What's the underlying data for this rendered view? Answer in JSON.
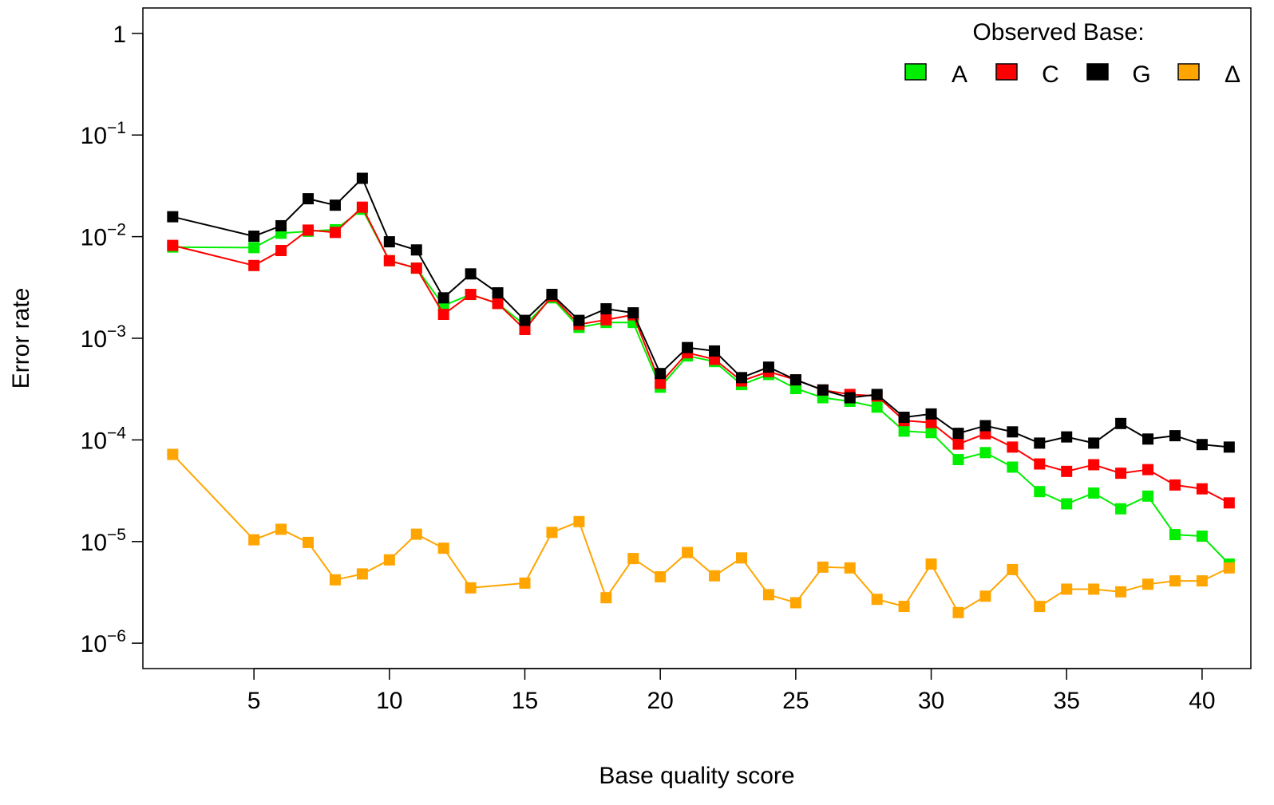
{
  "chart_data": {
    "type": "line",
    "title": "",
    "xlabel": "Base quality score",
    "ylabel": "Error rate",
    "log_y": true,
    "xlim": [
      0.9,
      41.8
    ],
    "ylim_log10": [
      -6.25,
      0.25
    ],
    "x_ticks": [
      5,
      10,
      15,
      20,
      25,
      30,
      35,
      40
    ],
    "x_tick_labels": [
      "5",
      "10",
      "15",
      "20",
      "25",
      "30",
      "35",
      "40"
    ],
    "y_ticks": [
      {
        "exp": 0,
        "base": "1",
        "sup": ""
      },
      {
        "exp": -1,
        "base": "10",
        "sup": "−1"
      },
      {
        "exp": -2,
        "base": "10",
        "sup": "−2"
      },
      {
        "exp": -3,
        "base": "10",
        "sup": "−3"
      },
      {
        "exp": -4,
        "base": "10",
        "sup": "−4"
      },
      {
        "exp": -5,
        "base": "10",
        "sup": "−5"
      },
      {
        "exp": -6,
        "base": "10",
        "sup": "−6"
      }
    ],
    "grid": false,
    "legend_position": "top-right",
    "legend_title": "Observed Base:",
    "series": [
      {
        "name": "A",
        "color": "#00ee00",
        "points": [
          [
            2,
            0.0079
          ],
          [
            5,
            0.0078
          ],
          [
            6,
            0.0108
          ],
          [
            7,
            0.0113
          ],
          [
            8,
            0.0117
          ],
          [
            9,
            0.0186
          ],
          [
            10,
            0.0058
          ],
          [
            11,
            0.0049
          ],
          [
            12,
            0.0021
          ],
          [
            13,
            0.0027
          ],
          [
            14,
            0.0022
          ],
          [
            15,
            0.00135
          ],
          [
            16,
            0.0025
          ],
          [
            17,
            0.00128
          ],
          [
            18,
            0.00143
          ],
          [
            19,
            0.00143
          ],
          [
            20,
            0.00033
          ],
          [
            21,
            0.00067
          ],
          [
            22,
            0.00059
          ],
          [
            23,
            0.00035
          ],
          [
            24,
            0.00044
          ],
          [
            25,
            0.00032
          ],
          [
            26,
            0.00026
          ],
          [
            27,
            0.00024
          ],
          [
            28,
            0.00021
          ],
          [
            29,
            0.000122
          ],
          [
            30,
            0.000118
          ],
          [
            31,
            6.4e-05
          ],
          [
            32,
            7.5e-05
          ],
          [
            33,
            5.4e-05
          ],
          [
            34,
            3.1e-05
          ],
          [
            35,
            2.35e-05
          ],
          [
            36,
            3e-05
          ],
          [
            37,
            2.1e-05
          ],
          [
            38,
            2.8e-05
          ],
          [
            39,
            1.17e-05
          ],
          [
            40,
            1.13e-05
          ],
          [
            41,
            6e-06
          ]
        ]
      },
      {
        "name": "C",
        "color": "#ff0000",
        "points": [
          [
            2,
            0.0082
          ],
          [
            5,
            0.0052
          ],
          [
            6,
            0.0073
          ],
          [
            7,
            0.0116
          ],
          [
            8,
            0.011
          ],
          [
            9,
            0.0195
          ],
          [
            10,
            0.0058
          ],
          [
            11,
            0.0049
          ],
          [
            12,
            0.00172
          ],
          [
            13,
            0.0027
          ],
          [
            14,
            0.0022
          ],
          [
            15,
            0.00122
          ],
          [
            16,
            0.0026
          ],
          [
            17,
            0.00137
          ],
          [
            18,
            0.00152
          ],
          [
            19,
            0.0017
          ],
          [
            20,
            0.00036
          ],
          [
            21,
            0.00072
          ],
          [
            22,
            0.00062
          ],
          [
            23,
            0.00038
          ],
          [
            24,
            0.00047
          ],
          [
            25,
            0.00039
          ],
          [
            26,
            0.00031
          ],
          [
            27,
            0.00028
          ],
          [
            28,
            0.00027
          ],
          [
            29,
            0.000155
          ],
          [
            30,
            0.000148
          ],
          [
            31,
            9.1e-05
          ],
          [
            32,
            0.000115
          ],
          [
            33,
            8.5e-05
          ],
          [
            34,
            5.8e-05
          ],
          [
            35,
            4.9e-05
          ],
          [
            36,
            5.7e-05
          ],
          [
            37,
            4.7e-05
          ],
          [
            38,
            5.1e-05
          ],
          [
            39,
            3.6e-05
          ],
          [
            40,
            3.3e-05
          ],
          [
            41,
            2.4e-05
          ]
        ]
      },
      {
        "name": "G",
        "color": "#000000",
        "points": [
          [
            2,
            0.0157
          ],
          [
            5,
            0.0101
          ],
          [
            6,
            0.0128
          ],
          [
            7,
            0.0236
          ],
          [
            8,
            0.0204
          ],
          [
            9,
            0.0375
          ],
          [
            10,
            0.0089
          ],
          [
            11,
            0.0074
          ],
          [
            12,
            0.0025
          ],
          [
            13,
            0.0043
          ],
          [
            14,
            0.0028
          ],
          [
            15,
            0.0015
          ],
          [
            16,
            0.0027
          ],
          [
            17,
            0.0015
          ],
          [
            18,
            0.00195
          ],
          [
            19,
            0.00178
          ],
          [
            20,
            0.00045
          ],
          [
            21,
            0.00081
          ],
          [
            22,
            0.00075
          ],
          [
            23,
            0.00041
          ],
          [
            24,
            0.00052
          ],
          [
            25,
            0.00039
          ],
          [
            26,
            0.00031
          ],
          [
            27,
            0.00026
          ],
          [
            28,
            0.00028
          ],
          [
            29,
            0.000167
          ],
          [
            30,
            0.00018
          ],
          [
            31,
            0.000116
          ],
          [
            32,
            0.000138
          ],
          [
            33,
            0.00012
          ],
          [
            34,
            9.3e-05
          ],
          [
            35,
            0.000107
          ],
          [
            36,
            9.3e-05
          ],
          [
            37,
            0.000145
          ],
          [
            38,
            0.000102
          ],
          [
            39,
            0.00011
          ],
          [
            40,
            9e-05
          ],
          [
            41,
            8.5e-05
          ]
        ]
      },
      {
        "name": "Δ",
        "color": "#ffa500",
        "points": [
          [
            2,
            7.2e-05
          ],
          [
            5,
            1.04e-05
          ],
          [
            6,
            1.32e-05
          ],
          [
            7,
            9.8e-06
          ],
          [
            8,
            4.2e-06
          ],
          [
            9,
            4.8e-06
          ],
          [
            10,
            6.6e-06
          ],
          [
            11,
            1.18e-05
          ],
          [
            12,
            8.6e-06
          ],
          [
            13,
            3.5e-06
          ],
          [
            15,
            3.9e-06
          ],
          [
            16,
            1.23e-05
          ],
          [
            17,
            1.57e-05
          ],
          [
            18,
            2.8e-06
          ],
          [
            19,
            6.8e-06
          ],
          [
            20,
            4.5e-06
          ],
          [
            21,
            7.8e-06
          ],
          [
            22,
            4.6e-06
          ],
          [
            23,
            6.9e-06
          ],
          [
            24,
            3e-06
          ],
          [
            25,
            2.5e-06
          ],
          [
            26,
            5.6e-06
          ],
          [
            27,
            5.5e-06
          ],
          [
            28,
            2.7e-06
          ],
          [
            29,
            2.3e-06
          ],
          [
            30,
            6e-06
          ],
          [
            31,
            2e-06
          ],
          [
            32,
            2.9e-06
          ],
          [
            33,
            5.3e-06
          ],
          [
            34,
            2.3e-06
          ],
          [
            35,
            3.4e-06
          ],
          [
            36,
            3.4e-06
          ],
          [
            37,
            3.2e-06
          ],
          [
            38,
            3.8e-06
          ],
          [
            39,
            4.1e-06
          ],
          [
            40,
            4.1e-06
          ],
          [
            41,
            5.5e-06
          ]
        ]
      }
    ]
  }
}
